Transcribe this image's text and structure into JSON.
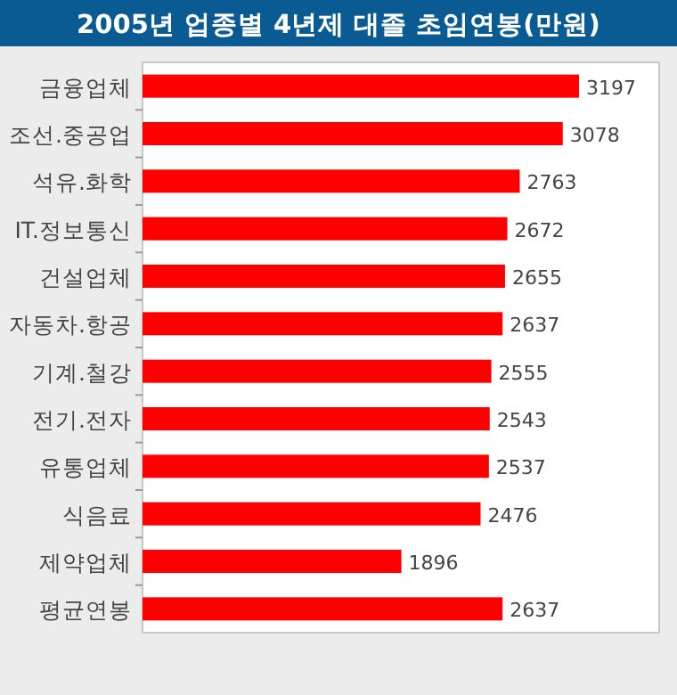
{
  "chart_data": {
    "type": "bar",
    "orientation": "horizontal",
    "title": "2005년 업종별 4년제 대졸 초임연봉(만원)",
    "categories": [
      "금융업체",
      "조선.중공업",
      "석유.화학",
      "IT.정보통신",
      "건설업체",
      "자동차.항공",
      "기계.철강",
      "전기.전자",
      "유통업체",
      "식음료",
      "제약업체",
      "평균연봉"
    ],
    "values": [
      3197,
      3078,
      2763,
      2672,
      2655,
      2637,
      2555,
      2543,
      2537,
      2476,
      1896,
      2637
    ],
    "color": "#ff0000",
    "data_labels": true
  }
}
